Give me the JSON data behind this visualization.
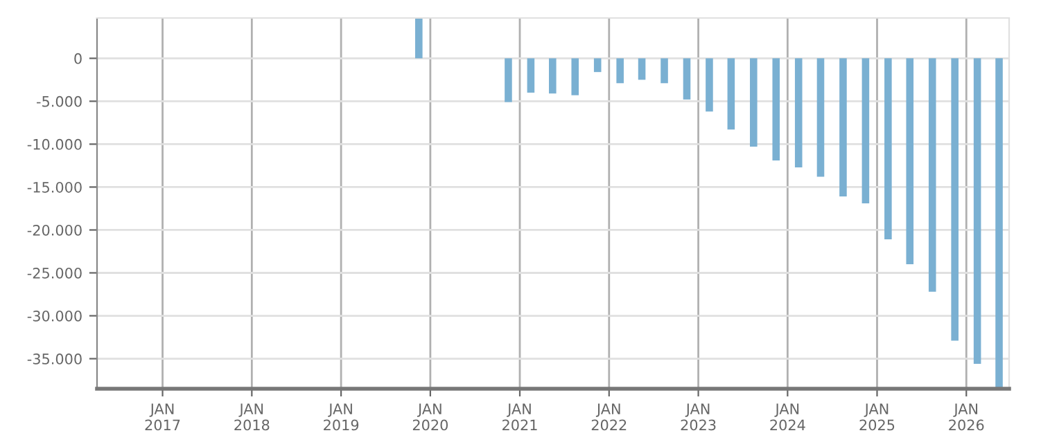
{
  "chart_data": {
    "type": "bar",
    "x": [
      "2019-11-15",
      "2020-11-15",
      "2021-02-15",
      "2021-05-15",
      "2021-08-15",
      "2021-11-15",
      "2022-02-15",
      "2022-05-15",
      "2022-08-15",
      "2022-11-15",
      "2023-02-15",
      "2023-05-15",
      "2023-08-15",
      "2023-11-15",
      "2024-02-15",
      "2024-05-15",
      "2024-08-15",
      "2024-11-15",
      "2025-02-15",
      "2025-05-15",
      "2025-08-15",
      "2025-11-15",
      "2026-02-15",
      "2026-05-15"
    ],
    "values": [
      4700,
      -5100,
      -4000,
      -4100,
      -4300,
      -1600,
      -2900,
      -2500,
      -2900,
      -4800,
      -6200,
      -8300,
      -10300,
      -11900,
      -12700,
      -13800,
      -16100,
      -16900,
      -21100,
      -24000,
      -27200,
      -32900,
      -35600,
      -38500
    ],
    "color": "#7ab0d2",
    "xlim": [
      "2016-04-08",
      "2026-06-25"
    ],
    "xticks": [
      {
        "value": "2017-01-01",
        "label": "JAN\n2017"
      },
      {
        "value": "2018-01-01",
        "label": "JAN\n2018"
      },
      {
        "value": "2019-01-01",
        "label": "JAN\n2019"
      },
      {
        "value": "2020-01-01",
        "label": "JAN\n2020"
      },
      {
        "value": "2021-01-01",
        "label": "JAN\n2021"
      },
      {
        "value": "2022-01-01",
        "label": "JAN\n2022"
      },
      {
        "value": "2023-01-01",
        "label": "JAN\n2023"
      },
      {
        "value": "2024-01-01",
        "label": "JAN\n2024"
      },
      {
        "value": "2025-01-01",
        "label": "JAN\n2025"
      },
      {
        "value": "2026-01-01",
        "label": "JAN\n2026"
      }
    ],
    "ylim": [
      -38500,
      4700
    ],
    "yticks": [
      {
        "value": 0,
        "label": "0"
      },
      {
        "value": -5000,
        "label": "-5.000"
      },
      {
        "value": -10000,
        "label": "-10.000"
      },
      {
        "value": -15000,
        "label": "-15.000"
      },
      {
        "value": -20000,
        "label": "-20.000"
      },
      {
        "value": -25000,
        "label": "-25.000"
      },
      {
        "value": -30000,
        "label": "-30.000"
      },
      {
        "value": -35000,
        "label": "-35.000"
      }
    ],
    "grid": true
  }
}
